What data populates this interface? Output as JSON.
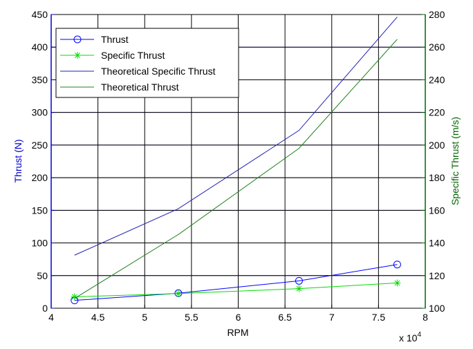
{
  "chart_data": {
    "type": "line",
    "xlabel": "RPM",
    "x_multiplier_label": "x 10",
    "x_multiplier_exponent": "4",
    "ylabel_left": "Thrust (N)",
    "ylabel_right": "Specific Thrust (m/s)",
    "xlim": [
      40000,
      80000
    ],
    "ylim_left": [
      0,
      450
    ],
    "ylim_right": [
      100,
      280
    ],
    "x_ticks": [
      40000,
      45000,
      50000,
      55000,
      60000,
      65000,
      70000,
      75000,
      80000
    ],
    "x_tick_labels": [
      "4",
      "4.5",
      "5",
      "5.5",
      "6",
      "6.5",
      "7",
      "7.5",
      "8"
    ],
    "y_left_ticks": [
      0,
      50,
      100,
      150,
      200,
      250,
      300,
      350,
      400,
      450
    ],
    "y_left_tick_labels": [
      "0",
      "50",
      "100",
      "150",
      "200",
      "250",
      "300",
      "350",
      "400",
      "450"
    ],
    "y_right_ticks": [
      100,
      120,
      140,
      160,
      180,
      200,
      220,
      240,
      260,
      280
    ],
    "y_right_tick_labels": [
      "100",
      "120",
      "140",
      "160",
      "180",
      "200",
      "220",
      "240",
      "260",
      "280"
    ],
    "grid": true,
    "legend_position": "top-left",
    "colors": {
      "left_axis": "#0000cc",
      "right_axis": "#006400",
      "blue_grid": "#5050d0",
      "black_grid": "#000000"
    },
    "series": [
      {
        "name": "Thrust",
        "axis": "left",
        "style": "line-marker",
        "marker": "circle",
        "color": "#0000ff",
        "x": [
          42500,
          53600,
          66500,
          77000
        ],
        "values": [
          12,
          23,
          42,
          67
        ]
      },
      {
        "name": "Specific Thrust",
        "axis": "right",
        "style": "line-marker",
        "marker": "asterisk",
        "color": "#00dd00",
        "x": [
          42500,
          53600,
          66500,
          77000
        ],
        "values": [
          107,
          109,
          112,
          115.5
        ]
      },
      {
        "name": "Theoretical Specific Thrust",
        "axis": "right",
        "style": "line",
        "color": "#2020b0",
        "x": [
          42500,
          53600,
          66500,
          77000
        ],
        "values": [
          132.5,
          161,
          209,
          278.5
        ]
      },
      {
        "name": "Theoretical Thrust",
        "axis": "left",
        "style": "line",
        "color": "#208020",
        "x": [
          42500,
          53600,
          66500,
          77000
        ],
        "values": [
          15,
          113,
          245,
          412
        ]
      }
    ]
  }
}
